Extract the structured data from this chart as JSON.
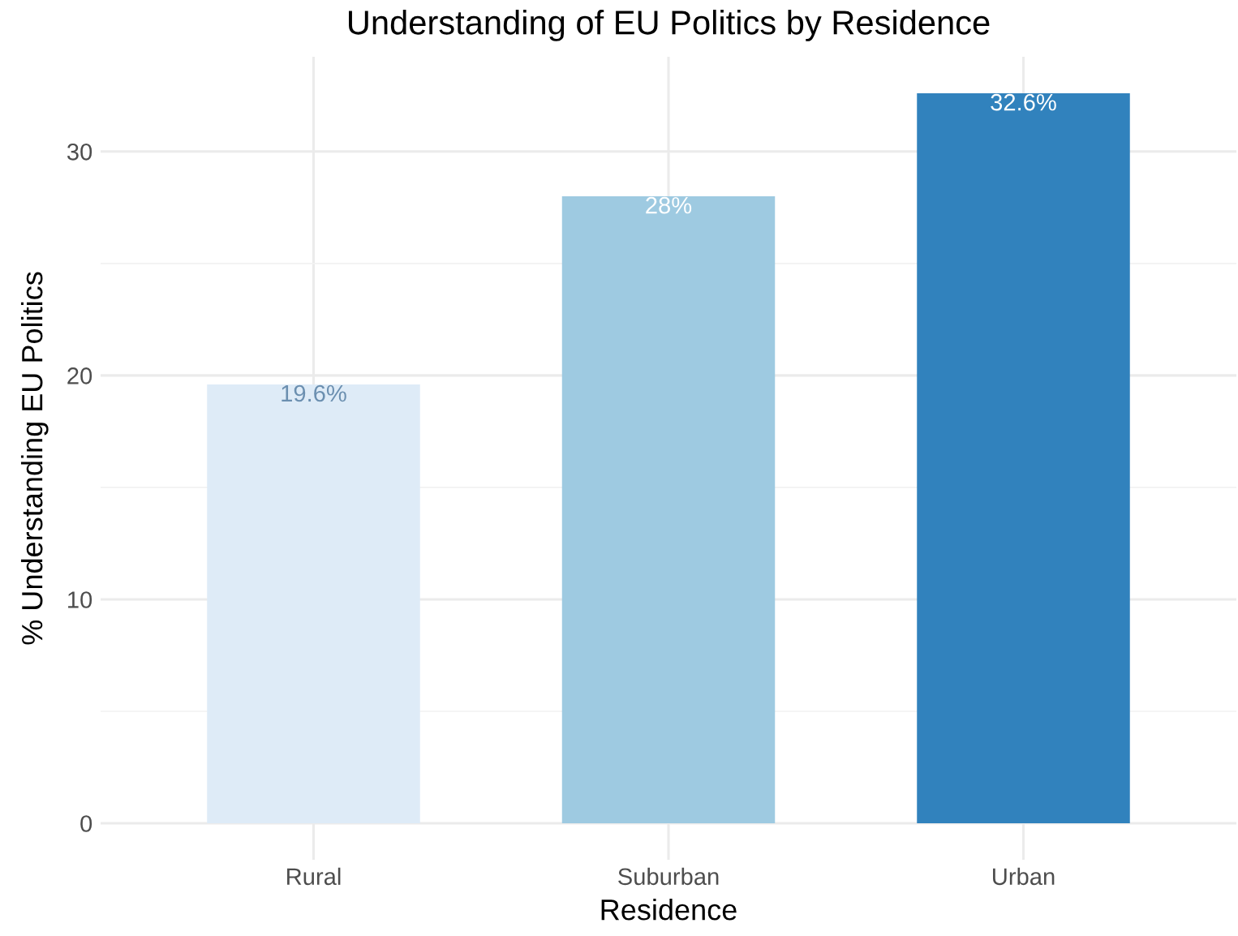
{
  "chart_data": {
    "type": "bar",
    "title": "Understanding of EU Politics by Residence",
    "xlabel": "Residence",
    "ylabel": "% Understanding EU Politics",
    "categories": [
      "Rural",
      "Suburban",
      "Urban"
    ],
    "values": [
      19.6,
      28,
      32.6
    ],
    "colors": [
      "#deebf7",
      "#9ecae1",
      "#3182bd"
    ],
    "value_labels": [
      "19.6%",
      "28%",
      "32.6%"
    ],
    "ylim": [
      -1.63,
      34.23
    ],
    "yticks": [
      0,
      {
        "value": 5,
        "label": null
      },
      10,
      {
        "value": 15,
        "label": null
      },
      20,
      {
        "value": 25,
        "label": null
      },
      30
    ],
    "grid": true,
    "legend": false
  }
}
